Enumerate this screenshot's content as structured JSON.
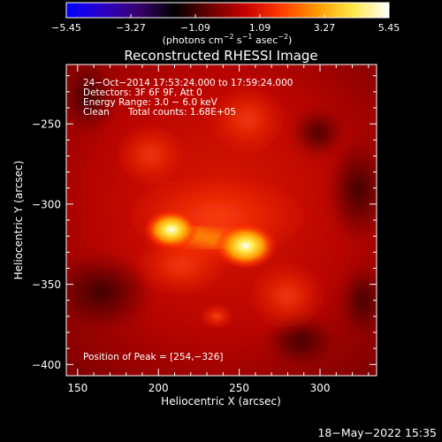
{
  "colorbar": {
    "tick_labels": [
      "−5.45",
      "−3.27",
      "−1.09",
      "1.09",
      "3.27",
      "5.45"
    ],
    "unit_main": "(photons cm",
    "unit_exp1": "−2",
    "unit_mid": " s",
    "unit_exp2": "−1",
    "unit_mid2": " asec",
    "unit_exp3": "−2",
    "unit_end": ")",
    "stops": [
      "#0000ff",
      "#2a00c8",
      "#380070",
      "#000000",
      "#6a0000",
      "#c80000",
      "#ff3c00",
      "#ff9a00",
      "#ffe848",
      "#ffffff"
    ]
  },
  "annotations": {
    "time_range": "24−Oct−2014 17:53:24.000 to 17:59:24.000",
    "detectors": "Detectors: 3F 6F 9F, Att 0",
    "energy": "Energy Range: 3.0 − 6.0 keV",
    "method": "Clean",
    "counts": "Total counts: 1.68E+05",
    "peak": "Position of Peak = [254,−326]"
  },
  "footer": {
    "date": "18−May−2022 15:35"
  },
  "chart_data": {
    "type": "heatmap",
    "title": "Reconstructed RHESSI Image",
    "xlabel": "Heliocentric X (arcsec)",
    "ylabel": "Heliocentric Y (arcsec)",
    "xlim": [
      143,
      335
    ],
    "ylim": [
      -407,
      -213
    ],
    "x_ticks": [
      150,
      200,
      250,
      300
    ],
    "y_ticks": [
      -250,
      -300,
      -350,
      -400
    ],
    "x_tick_labels": [
      "150",
      "200",
      "250",
      "300"
    ],
    "y_tick_labels": [
      "−250",
      "−300",
      "−350",
      "−400"
    ],
    "colorbar_range": [
      -5.45,
      5.45
    ],
    "peak_position": [
      254,
      -326
    ],
    "sources": [
      {
        "x": 254,
        "y": -326,
        "intensity": 5.45
      },
      {
        "x": 208,
        "y": -316,
        "intensity": 4.5
      },
      {
        "x": 236,
        "y": -370,
        "intensity": 2.2
      }
    ]
  }
}
